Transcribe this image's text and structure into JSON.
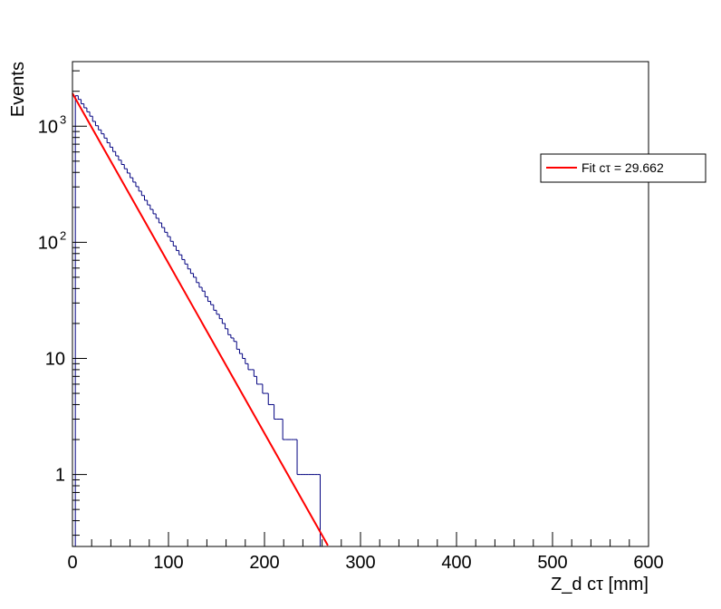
{
  "chart_data": {
    "type": "bar",
    "title": "",
    "xlabel": "Z_d cτ [mm]",
    "ylabel": "Events",
    "x_range": [
      0,
      600
    ],
    "y_range": [
      0.24,
      3600
    ],
    "y_scale": "log",
    "grid": false,
    "legend_position": "top-right",
    "x_ticks": [
      {
        "value": 0,
        "label": "0"
      },
      {
        "value": 100,
        "label": "100"
      },
      {
        "value": 200,
        "label": "200"
      },
      {
        "value": 300,
        "label": "300"
      },
      {
        "value": 400,
        "label": "400"
      },
      {
        "value": 500,
        "label": "500"
      },
      {
        "value": 600,
        "label": "600"
      }
    ],
    "y_ticks": [
      {
        "value": 1,
        "label": "1"
      },
      {
        "value": 10,
        "label": "10"
      },
      {
        "value": 100,
        "label": "10",
        "exp": "2"
      },
      {
        "value": 1000,
        "label": "10",
        "exp": "3"
      }
    ],
    "histogram": {
      "bin_width": 3,
      "color": "#000080",
      "bins": [
        [
          3,
          1830
        ],
        [
          6,
          1700
        ],
        [
          9,
          1560
        ],
        [
          12,
          1440
        ],
        [
          15,
          1330
        ],
        [
          18,
          1220
        ],
        [
          21,
          1100
        ],
        [
          24,
          1010
        ],
        [
          27,
          930
        ],
        [
          30,
          860
        ],
        [
          33,
          790
        ],
        [
          36,
          720
        ],
        [
          39,
          660
        ],
        [
          42,
          605
        ],
        [
          45,
          555
        ],
        [
          48,
          510
        ],
        [
          51,
          468
        ],
        [
          54,
          430
        ],
        [
          57,
          395
        ],
        [
          60,
          360
        ],
        [
          63,
          330
        ],
        [
          66,
          302
        ],
        [
          69,
          276
        ],
        [
          72,
          253
        ],
        [
          75,
          230
        ],
        [
          78,
          210
        ],
        [
          81,
          192
        ],
        [
          84,
          176
        ],
        [
          87,
          161
        ],
        [
          90,
          147
        ],
        [
          93,
          134
        ],
        [
          96,
          122
        ],
        [
          99,
          112
        ],
        [
          102,
          102
        ],
        [
          105,
          93
        ],
        [
          108,
          85
        ],
        [
          111,
          78
        ],
        [
          114,
          71
        ],
        [
          117,
          65
        ],
        [
          120,
          59
        ],
        [
          123,
          54
        ],
        [
          126,
          50
        ],
        [
          129,
          45
        ],
        [
          132,
          41
        ],
        [
          135,
          38
        ],
        [
          138,
          34
        ],
        [
          141,
          31
        ],
        [
          144,
          29
        ],
        [
          147,
          26
        ],
        [
          150,
          24
        ],
        [
          153,
          22
        ],
        [
          156,
          20
        ],
        [
          159,
          18
        ],
        [
          162,
          16
        ],
        [
          165,
          15
        ],
        [
          168,
          14
        ],
        [
          171,
          12
        ],
        [
          174,
          11
        ],
        [
          177,
          10
        ],
        [
          180,
          9
        ],
        [
          183,
          8
        ],
        [
          186,
          8
        ],
        [
          189,
          7
        ],
        [
          192,
          6
        ],
        [
          195,
          6
        ],
        [
          198,
          5
        ],
        [
          201,
          5
        ],
        [
          204,
          4
        ],
        [
          207,
          4
        ],
        [
          210,
          3
        ],
        [
          213,
          3
        ],
        [
          216,
          3
        ],
        [
          219,
          2
        ],
        [
          222,
          2
        ],
        [
          225,
          2
        ],
        [
          228,
          2
        ],
        [
          231,
          2
        ],
        [
          234,
          1
        ],
        [
          237,
          1
        ],
        [
          240,
          1
        ],
        [
          243,
          1
        ],
        [
          246,
          1
        ],
        [
          249,
          1
        ],
        [
          252,
          1
        ],
        [
          255,
          1
        ]
      ]
    },
    "fit": {
      "name": "Fit cτ = 29.662",
      "color": "#ff0000",
      "tau": 29.662,
      "amplitude": 1920,
      "x_start": 0,
      "x_end": 275
    }
  }
}
